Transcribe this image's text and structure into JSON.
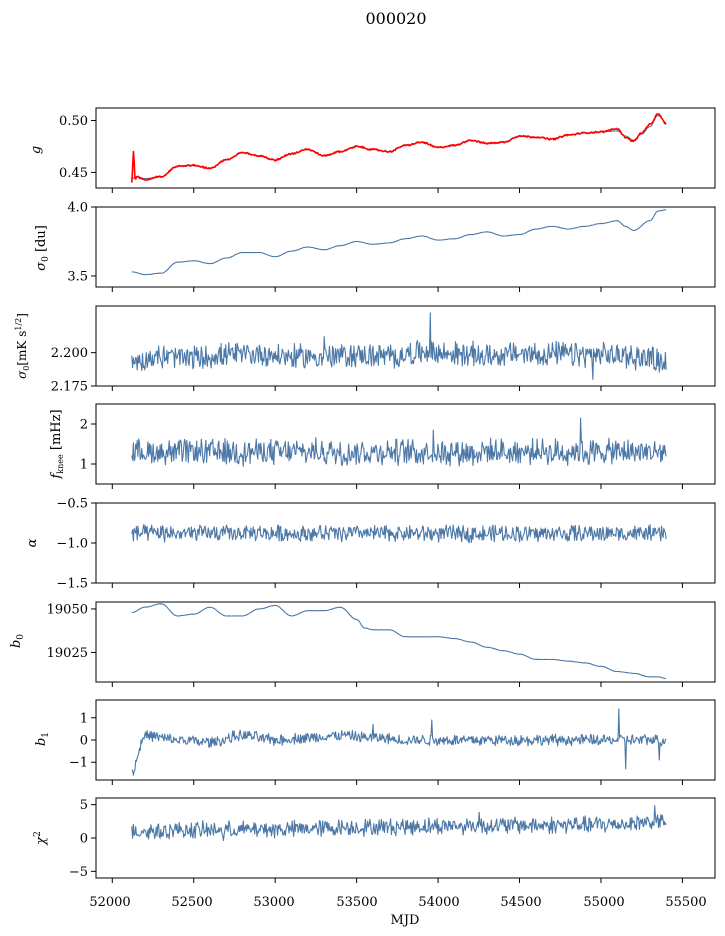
{
  "figure": {
    "suptitle": "000020",
    "xlabel": "MJD",
    "x_ticks": [
      "52000",
      "52500",
      "53000",
      "53500",
      "54000",
      "54500",
      "55000",
      "55500"
    ]
  },
  "colors": {
    "series": "#4c78a8",
    "highlight": "#ff0000",
    "axes": "#000000"
  },
  "chart_data": [
    {
      "type": "line",
      "ylabel": "g",
      "xlim": [
        51900,
        55700
      ],
      "ylim": [
        0.435,
        0.512
      ],
      "yticks": [
        0.45,
        0.5
      ],
      "ytick_labels": [
        "0.45",
        "0.50"
      ],
      "series": [
        {
          "color": "#4c78a8",
          "style": "smooth",
          "x": [
            52120,
            52150,
            52200,
            52300,
            52400,
            52500,
            52600,
            52700,
            52800,
            52900,
            53000,
            53100,
            53200,
            53300,
            53400,
            53500,
            53600,
            53700,
            53800,
            53900,
            54000,
            54100,
            54200,
            54300,
            54400,
            54500,
            54600,
            54700,
            54800,
            54900,
            55000,
            55100,
            55150,
            55200,
            55250,
            55300,
            55350,
            55400
          ],
          "y": [
            0.444,
            0.446,
            0.444,
            0.446,
            0.456,
            0.457,
            0.454,
            0.462,
            0.469,
            0.466,
            0.462,
            0.468,
            0.472,
            0.466,
            0.47,
            0.475,
            0.472,
            0.47,
            0.476,
            0.479,
            0.474,
            0.476,
            0.481,
            0.478,
            0.479,
            0.485,
            0.484,
            0.482,
            0.486,
            0.488,
            0.489,
            0.49,
            0.485,
            0.481,
            0.487,
            0.494,
            0.505,
            0.498
          ]
        },
        {
          "color": "#ff0000",
          "style": "noisy",
          "x": [
            52120,
            52130,
            52140,
            52150,
            52200,
            52300,
            52400,
            52500,
            52600,
            52700,
            52800,
            52900,
            53000,
            53100,
            53200,
            53300,
            53400,
            53500,
            53600,
            53700,
            53800,
            53900,
            54000,
            54100,
            54200,
            54300,
            54400,
            54500,
            54600,
            54700,
            54800,
            54900,
            55000,
            55100,
            55150,
            55200,
            55250,
            55300,
            55350,
            55400
          ],
          "y": [
            0.44,
            0.471,
            0.443,
            0.446,
            0.443,
            0.446,
            0.456,
            0.457,
            0.454,
            0.462,
            0.469,
            0.466,
            0.462,
            0.468,
            0.472,
            0.466,
            0.47,
            0.475,
            0.472,
            0.47,
            0.476,
            0.479,
            0.474,
            0.476,
            0.481,
            0.478,
            0.479,
            0.485,
            0.484,
            0.482,
            0.486,
            0.488,
            0.489,
            0.492,
            0.484,
            0.48,
            0.488,
            0.496,
            0.506,
            0.497
          ]
        }
      ]
    },
    {
      "type": "line",
      "ylabel": "σ0 [du]",
      "xlim": [
        51900,
        55700
      ],
      "ylim": [
        3.42,
        4.0
      ],
      "yticks": [
        3.5,
        4.0
      ],
      "ytick_labels": [
        "3.5",
        "4.0"
      ],
      "series": [
        {
          "color": "#4c78a8",
          "style": "smooth",
          "x": [
            52120,
            52200,
            52300,
            52400,
            52500,
            52600,
            52700,
            52800,
            52900,
            53000,
            53100,
            53200,
            53300,
            53400,
            53500,
            53600,
            53700,
            53800,
            53900,
            54000,
            54100,
            54200,
            54300,
            54400,
            54500,
            54600,
            54700,
            54800,
            54900,
            55000,
            55100,
            55150,
            55200,
            55300,
            55350,
            55400
          ],
          "y": [
            3.53,
            3.51,
            3.52,
            3.6,
            3.61,
            3.59,
            3.63,
            3.67,
            3.67,
            3.64,
            3.68,
            3.71,
            3.69,
            3.72,
            3.75,
            3.73,
            3.74,
            3.77,
            3.79,
            3.76,
            3.77,
            3.8,
            3.82,
            3.79,
            3.8,
            3.84,
            3.86,
            3.84,
            3.86,
            3.88,
            3.9,
            3.86,
            3.83,
            3.9,
            3.97,
            3.98
          ]
        }
      ]
    },
    {
      "type": "line",
      "ylabel": "σ0[mK s^1/2]",
      "xlim": [
        51900,
        55700
      ],
      "ylim": [
        2.175,
        2.235
      ],
      "yticks": [
        2.175,
        2.2
      ],
      "ytick_labels": [
        "2.175",
        "2.200"
      ],
      "series": [
        {
          "color": "#4c78a8",
          "style": "noisy",
          "x": [
            52120,
            52300,
            52500,
            52700,
            52900,
            53100,
            53300,
            53500,
            53700,
            53900,
            54100,
            54300,
            54500,
            54700,
            54900,
            55100,
            55300,
            55400
          ],
          "y": [
            2.193,
            2.197,
            2.196,
            2.198,
            2.199,
            2.197,
            2.197,
            2.198,
            2.197,
            2.2,
            2.199,
            2.198,
            2.199,
            2.199,
            2.198,
            2.198,
            2.196,
            2.193
          ]
        }
      ]
    },
    {
      "type": "line",
      "ylabel": "f_knee [mHz]",
      "xlim": [
        51900,
        55700
      ],
      "ylim": [
        0.5,
        2.5
      ],
      "yticks": [
        1,
        2
      ],
      "ytick_labels": [
        "1",
        "2"
      ],
      "series": [
        {
          "color": "#4c78a8",
          "style": "noisy",
          "x": [
            52120,
            52500,
            53000,
            53500,
            54000,
            54500,
            55000,
            55400
          ],
          "y": [
            1.3,
            1.3,
            1.3,
            1.3,
            1.3,
            1.3,
            1.3,
            1.3
          ]
        }
      ]
    },
    {
      "type": "line",
      "ylabel": "α",
      "xlim": [
        51900,
        55700
      ],
      "ylim": [
        -1.5,
        -0.5
      ],
      "yticks": [
        -1.5,
        -1.0,
        -0.5
      ],
      "ytick_labels": [
        "−1.5",
        "−1.0",
        "−0.5"
      ],
      "series": [
        {
          "color": "#4c78a8",
          "style": "noisy",
          "x": [
            52120,
            52500,
            53000,
            53500,
            54000,
            54500,
            55000,
            55400
          ],
          "y": [
            -0.88,
            -0.88,
            -0.88,
            -0.88,
            -0.88,
            -0.88,
            -0.88,
            -0.88
          ]
        }
      ]
    },
    {
      "type": "line",
      "ylabel": "b0",
      "xlim": [
        51900,
        55700
      ],
      "ylim": [
        19008,
        19054
      ],
      "yticks": [
        19025,
        19050
      ],
      "ytick_labels": [
        "19025",
        "19050"
      ],
      "series": [
        {
          "color": "#4c78a8",
          "style": "smooth",
          "x": [
            52120,
            52200,
            52300,
            52400,
            52500,
            52600,
            52700,
            52800,
            52900,
            53000,
            53100,
            53200,
            53300,
            53400,
            53500,
            53550,
            53600,
            53700,
            53800,
            53900,
            54000,
            54100,
            54200,
            54300,
            54400,
            54500,
            54600,
            54700,
            54800,
            54900,
            55000,
            55100,
            55200,
            55300,
            55350,
            55400
          ],
          "y": [
            19048,
            19051,
            19053,
            19046,
            19047,
            19051,
            19046,
            19046,
            19050,
            19052,
            19046,
            19049,
            19049,
            19051,
            19044,
            19039,
            19038,
            19038,
            19034,
            19034,
            19034,
            19033,
            19031,
            19028,
            19026,
            19024,
            19021,
            19021,
            19020,
            19019,
            19017,
            19014,
            19013,
            19011,
            19011,
            19010
          ]
        }
      ]
    },
    {
      "type": "line",
      "ylabel": "b1",
      "xlim": [
        51900,
        55700
      ],
      "ylim": [
        -1.8,
        1.8
      ],
      "yticks": [
        -1,
        0,
        1
      ],
      "ytick_labels": [
        "−1",
        "0",
        "1"
      ],
      "series": [
        {
          "color": "#4c78a8",
          "style": "noisy",
          "x": [
            52120,
            52200,
            52400,
            52600,
            52800,
            53000,
            53200,
            53400,
            53600,
            53800,
            54000,
            54200,
            54400,
            54600,
            54800,
            55000,
            55200,
            55400
          ],
          "y": [
            -1.4,
            0.2,
            0.0,
            -0.1,
            0.2,
            0.0,
            0.1,
            0.2,
            0.1,
            0.0,
            0.0,
            0.0,
            0.0,
            0.0,
            0.0,
            0.0,
            0.0,
            0.0
          ]
        }
      ]
    },
    {
      "type": "line",
      "ylabel": "χ2",
      "xlim": [
        51900,
        55700
      ],
      "ylim": [
        -6,
        6
      ],
      "yticks": [
        -5,
        0,
        5
      ],
      "ytick_labels": [
        "−5",
        "0",
        "5"
      ],
      "series": [
        {
          "color": "#4c78a8",
          "style": "noisy",
          "x": [
            52120,
            52500,
            53000,
            53500,
            54000,
            54500,
            55000,
            55400
          ],
          "y": [
            1.0,
            1.2,
            1.3,
            1.6,
            1.8,
            1.9,
            2.0,
            2.5
          ]
        }
      ]
    }
  ]
}
